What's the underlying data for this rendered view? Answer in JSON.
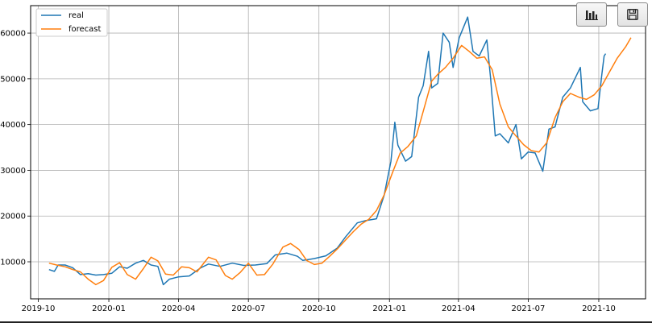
{
  "toolbar": {
    "buttons": [
      {
        "name": "chart-view-button",
        "icon": "bar-chart-icon"
      },
      {
        "name": "save-button",
        "icon": "floppy-disk-icon"
      }
    ]
  },
  "colors": {
    "real": "#1f77b4",
    "forecast": "#ff7f0e",
    "grid": "#b0b0b0"
  },
  "chart_data": {
    "type": "line",
    "title": "",
    "xlabel": "",
    "ylabel": "",
    "grid": true,
    "legend_position": "top-left",
    "xlim": [
      "2019-09-21",
      "2021-12-01"
    ],
    "ylim": [
      1900,
      66000
    ],
    "xticks": [
      "2019-10",
      "2020-01",
      "2020-04",
      "2020-07",
      "2020-10",
      "2021-01",
      "2021-04",
      "2021-07",
      "2021-10"
    ],
    "yticks": [
      10000,
      20000,
      30000,
      40000,
      50000,
      60000
    ],
    "series": [
      {
        "name": "real",
        "color": "#1f77b4",
        "points": [
          [
            "2019-10-15",
            8300
          ],
          [
            "2019-10-22",
            7900
          ],
          [
            "2019-10-27",
            9300
          ],
          [
            "2019-11-05",
            9300
          ],
          [
            "2019-11-15",
            8700
          ],
          [
            "2019-11-25",
            7200
          ],
          [
            "2019-12-05",
            7400
          ],
          [
            "2019-12-15",
            7100
          ],
          [
            "2019-12-25",
            7200
          ],
          [
            "2020-01-05",
            7500
          ],
          [
            "2020-01-15",
            8900
          ],
          [
            "2020-01-25",
            8600
          ],
          [
            "2020-02-05",
            9700
          ],
          [
            "2020-02-15",
            10300
          ],
          [
            "2020-02-25",
            9300
          ],
          [
            "2020-03-05",
            9000
          ],
          [
            "2020-03-12",
            5000
          ],
          [
            "2020-03-20",
            6200
          ],
          [
            "2020-04-01",
            6700
          ],
          [
            "2020-04-15",
            6900
          ],
          [
            "2020-04-30",
            8700
          ],
          [
            "2020-05-10",
            9500
          ],
          [
            "2020-05-25",
            9000
          ],
          [
            "2020-06-10",
            9700
          ],
          [
            "2020-06-25",
            9200
          ],
          [
            "2020-07-10",
            9300
          ],
          [
            "2020-07-25",
            9600
          ],
          [
            "2020-08-05",
            11500
          ],
          [
            "2020-08-20",
            11900
          ],
          [
            "2020-09-03",
            11200
          ],
          [
            "2020-09-10",
            10300
          ],
          [
            "2020-09-25",
            10700
          ],
          [
            "2020-10-10",
            11300
          ],
          [
            "2020-10-25",
            13000
          ],
          [
            "2020-11-05",
            15500
          ],
          [
            "2020-11-20",
            18500
          ],
          [
            "2020-12-01",
            19000
          ],
          [
            "2020-12-15",
            19400
          ],
          [
            "2020-12-25",
            24500
          ],
          [
            "2021-01-03",
            32000
          ],
          [
            "2021-01-08",
            40500
          ],
          [
            "2021-01-12",
            35500
          ],
          [
            "2021-01-22",
            32000
          ],
          [
            "2021-01-30",
            33000
          ],
          [
            "2021-02-08",
            46000
          ],
          [
            "2021-02-14",
            48500
          ],
          [
            "2021-02-21",
            56000
          ],
          [
            "2021-02-25",
            48000
          ],
          [
            "2021-03-05",
            49000
          ],
          [
            "2021-03-12",
            60000
          ],
          [
            "2021-03-20",
            58000
          ],
          [
            "2021-03-25",
            52500
          ],
          [
            "2021-04-02",
            59000
          ],
          [
            "2021-04-13",
            63500
          ],
          [
            "2021-04-20",
            56000
          ],
          [
            "2021-04-28",
            55000
          ],
          [
            "2021-05-08",
            58500
          ],
          [
            "2021-05-13",
            50000
          ],
          [
            "2021-05-19",
            37500
          ],
          [
            "2021-05-25",
            38000
          ],
          [
            "2021-06-05",
            36000
          ],
          [
            "2021-06-15",
            40000
          ],
          [
            "2021-06-22",
            32500
          ],
          [
            "2021-07-01",
            34000
          ],
          [
            "2021-07-10",
            33800
          ],
          [
            "2021-07-20",
            29800
          ],
          [
            "2021-07-28",
            39000
          ],
          [
            "2021-08-05",
            39500
          ],
          [
            "2021-08-15",
            46000
          ],
          [
            "2021-08-25",
            48000
          ],
          [
            "2021-09-07",
            52500
          ],
          [
            "2021-09-10",
            45000
          ],
          [
            "2021-09-20",
            43000
          ],
          [
            "2021-09-30",
            43500
          ],
          [
            "2021-10-05",
            51000
          ],
          [
            "2021-10-08",
            55000
          ],
          [
            "2021-10-10",
            55500
          ]
        ]
      },
      {
        "name": "forecast",
        "color": "#ff7f0e",
        "points": [
          [
            "2019-10-15",
            9700
          ],
          [
            "2019-10-25",
            9300
          ],
          [
            "2019-11-05",
            8900
          ],
          [
            "2019-11-15",
            8300
          ],
          [
            "2019-11-25",
            7800
          ],
          [
            "2019-12-05",
            6200
          ],
          [
            "2019-12-15",
            5000
          ],
          [
            "2019-12-25",
            5900
          ],
          [
            "2020-01-05",
            8800
          ],
          [
            "2020-01-15",
            9800
          ],
          [
            "2020-01-25",
            7200
          ],
          [
            "2020-02-05",
            6200
          ],
          [
            "2020-02-15",
            8500
          ],
          [
            "2020-02-25",
            11000
          ],
          [
            "2020-03-05",
            10200
          ],
          [
            "2020-03-15",
            7300
          ],
          [
            "2020-03-25",
            7100
          ],
          [
            "2020-04-05",
            8900
          ],
          [
            "2020-04-15",
            8700
          ],
          [
            "2020-04-25",
            7800
          ],
          [
            "2020-05-10",
            11000
          ],
          [
            "2020-05-20",
            10400
          ],
          [
            "2020-06-01",
            7000
          ],
          [
            "2020-06-10",
            6200
          ],
          [
            "2020-06-20",
            7600
          ],
          [
            "2020-07-01",
            9700
          ],
          [
            "2020-07-12",
            7100
          ],
          [
            "2020-07-22",
            7200
          ],
          [
            "2020-08-02",
            9500
          ],
          [
            "2020-08-15",
            13200
          ],
          [
            "2020-08-25",
            14000
          ],
          [
            "2020-09-05",
            12700
          ],
          [
            "2020-09-15",
            10300
          ],
          [
            "2020-09-25",
            9400
          ],
          [
            "2020-10-05",
            9700
          ],
          [
            "2020-10-15",
            11200
          ],
          [
            "2020-10-25",
            12800
          ],
          [
            "2020-11-05",
            14800
          ],
          [
            "2020-11-15",
            16600
          ],
          [
            "2020-11-25",
            18200
          ],
          [
            "2020-12-05",
            19300
          ],
          [
            "2020-12-15",
            21200
          ],
          [
            "2020-12-25",
            24600
          ],
          [
            "2021-01-05",
            29500
          ],
          [
            "2021-01-15",
            33800
          ],
          [
            "2021-01-25",
            35200
          ],
          [
            "2021-02-05",
            37500
          ],
          [
            "2021-02-15",
            43500
          ],
          [
            "2021-02-25",
            49500
          ],
          [
            "2021-03-05",
            51000
          ],
          [
            "2021-03-15",
            52500
          ],
          [
            "2021-03-25",
            54500
          ],
          [
            "2021-04-05",
            57300
          ],
          [
            "2021-04-15",
            56000
          ],
          [
            "2021-04-25",
            54500
          ],
          [
            "2021-05-05",
            54800
          ],
          [
            "2021-05-15",
            52000
          ],
          [
            "2021-05-25",
            44500
          ],
          [
            "2021-06-05",
            39500
          ],
          [
            "2021-06-15",
            37500
          ],
          [
            "2021-06-25",
            35600
          ],
          [
            "2021-07-05",
            34300
          ],
          [
            "2021-07-15",
            34000
          ],
          [
            "2021-07-25",
            36000
          ],
          [
            "2021-08-05",
            41500
          ],
          [
            "2021-08-15",
            45000
          ],
          [
            "2021-08-25",
            46800
          ],
          [
            "2021-09-05",
            46000
          ],
          [
            "2021-09-15",
            45500
          ],
          [
            "2021-09-25",
            46500
          ],
          [
            "2021-10-05",
            48500
          ],
          [
            "2021-10-15",
            51500
          ],
          [
            "2021-10-25",
            54500
          ],
          [
            "2021-11-05",
            57000
          ],
          [
            "2021-11-12",
            59000
          ]
        ]
      }
    ]
  }
}
